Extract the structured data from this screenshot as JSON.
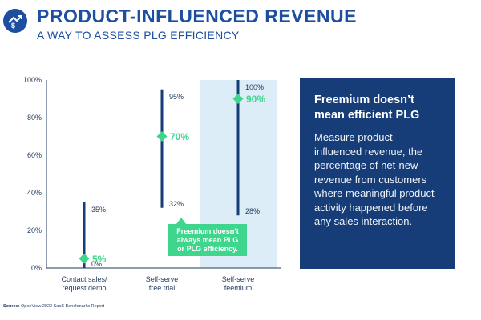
{
  "header": {
    "title": "PRODUCT-INFLUENCED REVENUE",
    "subtitle": "A WAY TO ASSESS PLG EFFICIENCY"
  },
  "info_box": {
    "heading": "Freemium doesn’t mean efficient PLG",
    "body": "Measure product-influenced revenue, the percentage of net-new revenue from customers where meaningful product activity happened before any sales interaction."
  },
  "callout": {
    "text": "Freemium doesn’t always mean PLG or PLG efficiency."
  },
  "source": {
    "label": "Source:",
    "text": "OpenView 2023 SaaS Benchmarks Report"
  },
  "chart_data": {
    "type": "range",
    "ylim": [
      0,
      100
    ],
    "yticks": [
      "0%",
      "20%",
      "40%",
      "60%",
      "80%",
      "100%"
    ],
    "yticks_values": [
      0,
      20,
      40,
      60,
      80,
      100
    ],
    "grid": false,
    "categories": [
      {
        "label_lines": [
          "Contact sales/",
          "request demo"
        ],
        "low": 0,
        "high": 35,
        "median": 5,
        "low_label": "0%",
        "high_label": "35%",
        "median_label": "5%",
        "highlight": false
      },
      {
        "label_lines": [
          "Self-serve",
          "free trial"
        ],
        "low": 32,
        "high": 95,
        "median": 70,
        "low_label": "32%",
        "high_label": "95%",
        "median_label": "70%",
        "highlight": false
      },
      {
        "label_lines": [
          "Self-serve",
          "feemium"
        ],
        "low": 28,
        "high": 100,
        "median": 90,
        "low_label": "28%",
        "high_label": "100%",
        "median_label": "90%",
        "highlight": true
      }
    ],
    "colors": {
      "range": "#163d78",
      "marker": "#3dd68c",
      "highlight_band": "#dcedf8",
      "axis": "#1f3a5f"
    }
  }
}
